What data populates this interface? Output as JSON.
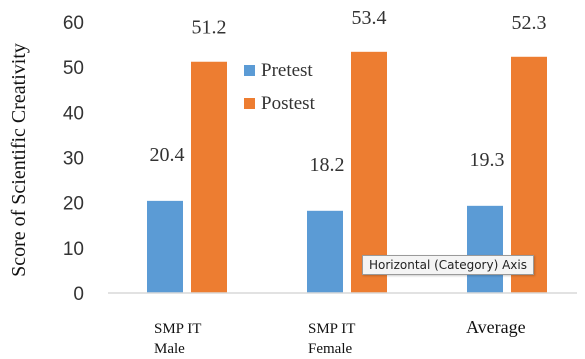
{
  "chart_data": {
    "type": "bar",
    "categories": [
      [
        "SMP IT",
        "Male"
      ],
      [
        "SMP IT",
        "Female"
      ],
      [
        "Average"
      ]
    ],
    "series": [
      {
        "name": "Pretest",
        "values": [
          20.4,
          18.2,
          19.3
        ],
        "color": "#5B9BD5"
      },
      {
        "name": "Postest",
        "values": [
          51.2,
          53.4,
          52.3
        ],
        "color": "#ED7D31"
      }
    ],
    "ylabel": "Score of Scientific Creativity",
    "ylim": [
      0,
      60
    ],
    "yticks": [
      0,
      10,
      20,
      30,
      40,
      50,
      60
    ],
    "grid": false,
    "legend": "top-center"
  },
  "tooltip": {
    "text": "Horizontal (Category) Axis"
  }
}
